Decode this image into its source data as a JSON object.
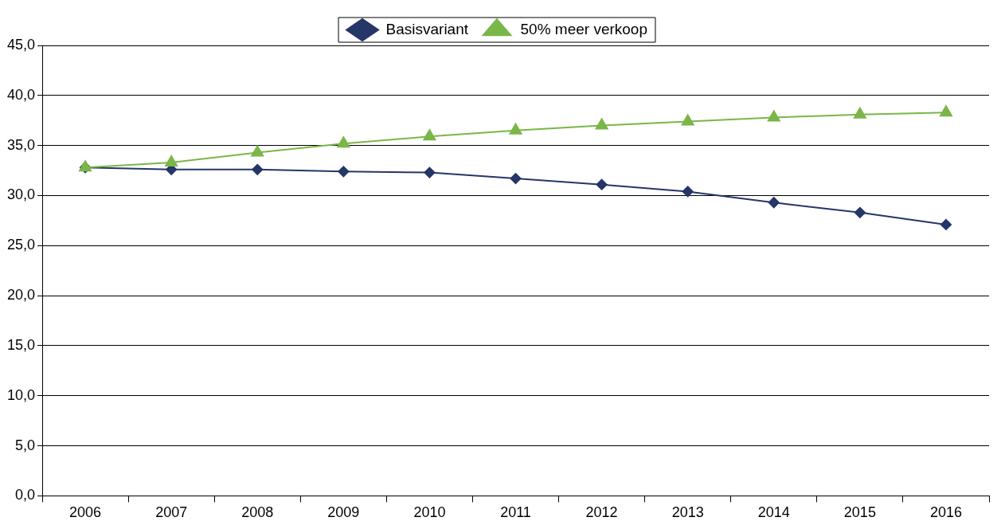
{
  "chart_data": {
    "type": "line",
    "categories": [
      "2006",
      "2007",
      "2008",
      "2009",
      "2010",
      "2011",
      "2012",
      "2013",
      "2014",
      "2015",
      "2016"
    ],
    "series": [
      {
        "name": "Basisvariant",
        "color": "#253668",
        "marker": "diamond",
        "values": [
          32.8,
          32.6,
          32.6,
          32.4,
          32.3,
          31.7,
          31.1,
          30.4,
          29.3,
          28.3,
          27.1
        ]
      },
      {
        "name": "50% meer verkoop",
        "color": "#7ab648",
        "marker": "triangle",
        "values": [
          32.8,
          33.3,
          34.3,
          35.2,
          35.9,
          36.5,
          37.0,
          37.4,
          37.8,
          38.1,
          38.3
        ]
      }
    ],
    "ylim": [
      0,
      45
    ],
    "yticks": [
      {
        "value": 0,
        "label": "0,0"
      },
      {
        "value": 5,
        "label": "5,0"
      },
      {
        "value": 10,
        "label": "10,0"
      },
      {
        "value": 15,
        "label": "15,0"
      },
      {
        "value": 20,
        "label": "20,0"
      },
      {
        "value": 25,
        "label": "25,0"
      },
      {
        "value": 30,
        "label": "30,0"
      },
      {
        "value": 35,
        "label": "35,0"
      },
      {
        "value": 40,
        "label": "40,0"
      },
      {
        "value": 45,
        "label": "45,0"
      }
    ],
    "grid": "y",
    "legend": "top",
    "line_style": "solid"
  }
}
